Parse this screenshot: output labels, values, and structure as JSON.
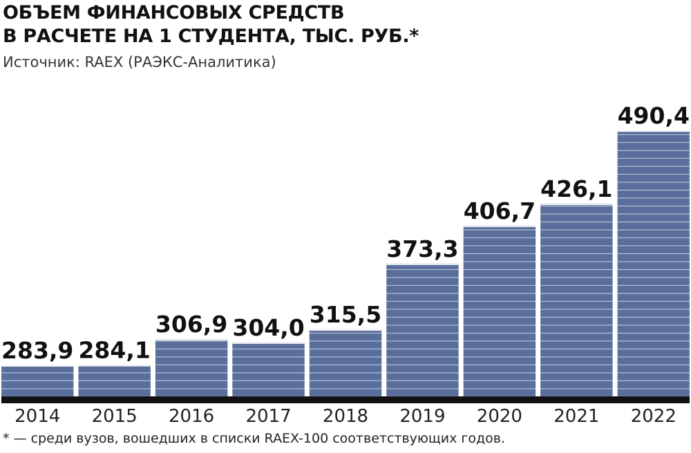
{
  "header": {
    "title_line1": "ОБЪЕМ ФИНАНСОВЫХ СРЕДСТВ",
    "title_line2": "В РАСЧЕТЕ НА 1 СТУДЕНТА, ТЫС. РУБ.*",
    "source": "Источник: RAEX (РАЭКС-Аналитика)"
  },
  "footnote": "* — среди вузов, вошедших в списки RAEX-100 соответствующих годов.",
  "colors": {
    "bar": "#5a6e9c",
    "bar_stripe": "#ffffff",
    "bar_top": "#eef0f5",
    "baseline": "#111111"
  },
  "chart_data": {
    "type": "bar",
    "title": "ОБЪЕМ ФИНАНСОВЫХ СРЕДСТВ В РАСЧЕТЕ НА 1 СТУДЕНТА, ТЫС. РУБ.*",
    "categories": [
      "2014",
      "2015",
      "2016",
      "2017",
      "2018",
      "2019",
      "2020",
      "2021",
      "2022"
    ],
    "values": [
      283.9,
      284.1,
      306.9,
      304.0,
      315.5,
      373.3,
      406.7,
      426.1,
      490.4
    ],
    "value_labels": [
      "283,9",
      "284,1",
      "306,9",
      "304,0",
      "315,5",
      "373,3",
      "406,7",
      "426,1",
      "490,4"
    ],
    "xlabel": "",
    "ylabel": "",
    "grid": false,
    "legend": "none"
  }
}
